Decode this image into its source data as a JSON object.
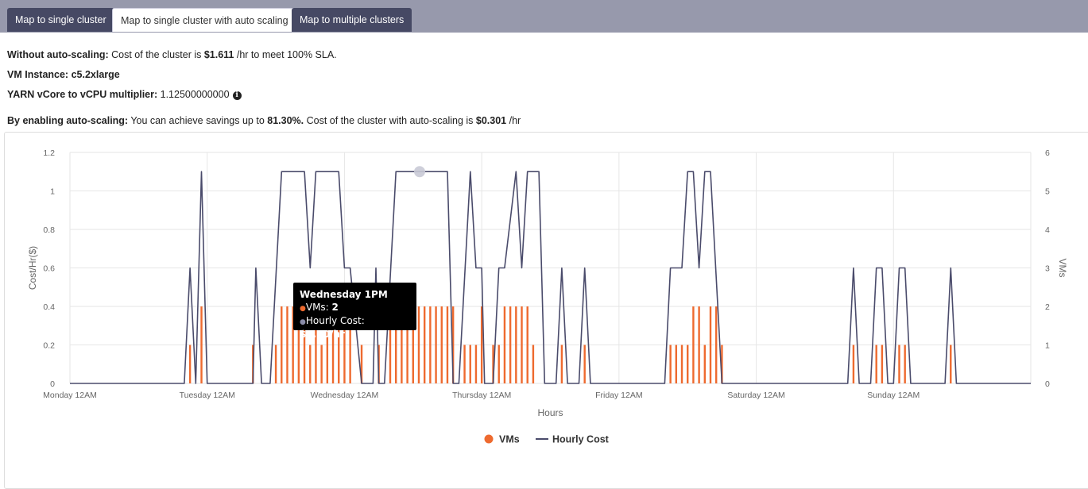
{
  "tabs": [
    {
      "label": "Map to single cluster",
      "active": false
    },
    {
      "label": "Map to single cluster with auto scaling",
      "active": true
    },
    {
      "label": "Map to multiple clusters",
      "active": false
    }
  ],
  "info": {
    "line1_bold": "Without auto-scaling:",
    "line1_text": " Cost of the cluster is ",
    "line1_cost": "$1.611",
    "line1_tail": " /hr to meet 100% SLA.",
    "vm_label": "VM Instance: c5.2xlarge",
    "yarn_bold": "YARN vCore to vCPU multiplier:",
    "yarn_value": " 1.12500000000",
    "savings_bold": "By enabling auto-scaling:",
    "savings_text": " You can achieve savings up to ",
    "savings_pct": "81.30%.",
    "savings_mid": " Cost of the cluster with auto-scaling is ",
    "savings_cost": "$0.301",
    "savings_tail": " /hr"
  },
  "colors": {
    "vms": "#ee6a2f",
    "cost": "#4a4b6b",
    "tab_dark": "#464964",
    "tabbar": "#9799ac"
  },
  "tooltip": {
    "title": "Wednesday 1PM",
    "vms_label": "VMs: ",
    "vms_value": "2",
    "cost_label": "Hourly Cost: ",
    "cost_value": "$1.10/hr"
  },
  "legend": {
    "vms": "VMs",
    "cost": "Hourly Cost"
  },
  "chart_data": {
    "type": "bar+line",
    "xlabel": "Hours",
    "ylabel_left": "Cost/Hr($)",
    "ylabel_right": "VMs",
    "ylim_left": [
      0,
      1.2
    ],
    "ylim_right": [
      0,
      6
    ],
    "yticks_left": [
      "0",
      "0.2",
      "0.4",
      "0.6",
      "0.8",
      "1",
      "1.2"
    ],
    "yticks_right": [
      "0",
      "1",
      "2",
      "3",
      "4",
      "5",
      "6"
    ],
    "xticks": [
      {
        "hour": 0,
        "label": "Monday 12AM"
      },
      {
        "hour": 24,
        "label": "Tuesday 12AM"
      },
      {
        "hour": 48,
        "label": "Wednesday 12AM"
      },
      {
        "hour": 72,
        "label": "Thursday 12AM"
      },
      {
        "hour": 96,
        "label": "Friday 12AM"
      },
      {
        "hour": 120,
        "label": "Saturday 12AM"
      },
      {
        "hour": 144,
        "label": "Sunday 12AM"
      }
    ],
    "hours": 168,
    "vms": [
      0,
      0,
      0,
      0,
      0,
      0,
      0,
      0,
      0,
      0,
      0,
      0,
      0,
      0,
      0,
      0,
      0,
      0,
      0,
      0,
      0,
      1,
      0,
      2,
      0,
      0,
      0,
      0,
      0,
      0,
      0,
      0,
      0,
      1,
      0,
      0,
      0,
      1,
      2,
      2,
      2,
      2,
      1,
      2,
      1,
      2,
      2,
      2,
      2,
      2,
      0,
      1,
      0,
      0,
      1,
      0,
      2,
      2,
      2,
      2,
      2,
      2,
      2,
      2,
      2,
      2,
      2,
      2,
      0,
      1,
      1,
      1,
      2,
      0,
      1,
      1,
      2,
      2,
      2,
      2,
      2,
      1,
      0,
      0,
      0,
      0,
      1,
      0,
      0,
      0,
      1,
      0,
      0,
      0,
      0,
      0,
      0,
      0,
      0,
      0,
      0,
      0,
      0,
      0,
      0,
      1,
      1,
      1,
      1,
      2,
      2,
      1,
      2,
      2,
      1,
      0,
      0,
      0,
      0,
      0,
      0,
      0,
      0,
      0,
      0,
      0,
      0,
      0,
      0,
      0,
      0,
      0,
      0,
      0,
      0,
      0,
      0,
      0,
      0,
      0,
      0,
      0,
      0,
      0,
      0,
      0,
      0,
      0,
      0,
      0,
      0,
      0,
      0,
      0,
      0,
      0,
      0,
      0,
      0,
      0,
      0,
      0,
      0,
      0,
      0,
      0,
      0,
      0
    ],
    "vm_bars": [
      [
        21,
        1
      ],
      [
        23,
        2
      ],
      [
        32,
        1
      ],
      [
        36,
        1
      ],
      [
        37,
        2
      ],
      [
        38,
        2
      ],
      [
        39,
        2
      ],
      [
        40,
        2
      ],
      [
        41,
        2
      ],
      [
        42,
        1
      ],
      [
        43,
        2
      ],
      [
        44,
        1
      ],
      [
        45,
        2
      ],
      [
        46,
        2
      ],
      [
        47,
        2
      ],
      [
        48,
        2
      ],
      [
        49,
        2
      ],
      [
        51,
        1
      ],
      [
        54,
        1
      ],
      [
        56,
        2
      ],
      [
        57,
        2
      ],
      [
        58,
        2
      ],
      [
        59,
        2
      ],
      [
        60,
        2
      ],
      [
        61,
        2
      ],
      [
        62,
        2
      ],
      [
        63,
        2
      ],
      [
        64,
        2
      ],
      [
        65,
        2
      ],
      [
        66,
        2
      ],
      [
        67,
        2
      ],
      [
        69,
        1
      ],
      [
        70,
        1
      ],
      [
        71,
        1
      ],
      [
        72,
        2
      ],
      [
        74,
        1
      ],
      [
        75,
        1
      ],
      [
        76,
        2
      ],
      [
        77,
        2
      ],
      [
        78,
        2
      ],
      [
        79,
        2
      ],
      [
        80,
        2
      ],
      [
        81,
        1
      ],
      [
        86,
        1
      ],
      [
        90,
        1
      ],
      [
        105,
        1
      ],
      [
        106,
        1
      ],
      [
        107,
        1
      ],
      [
        108,
        1
      ],
      [
        109,
        2
      ],
      [
        110,
        2
      ],
      [
        111,
        1
      ],
      [
        112,
        2
      ],
      [
        113,
        2
      ],
      [
        114,
        1
      ],
      [
        137,
        1
      ],
      [
        141,
        1
      ],
      [
        142,
        1
      ],
      [
        145,
        1
      ],
      [
        146,
        1
      ],
      [
        154,
        1
      ]
    ],
    "hourly_cost": [
      [
        0,
        0
      ],
      [
        20,
        0
      ],
      [
        21,
        0.6
      ],
      [
        22,
        0
      ],
      [
        23,
        1.1
      ],
      [
        24,
        0
      ],
      [
        32,
        0
      ],
      [
        32.5,
        0.6
      ],
      [
        33.5,
        0
      ],
      [
        35,
        0
      ],
      [
        37,
        1.1
      ],
      [
        41,
        1.1
      ],
      [
        42,
        0.6
      ],
      [
        43,
        1.1
      ],
      [
        47,
        1.1
      ],
      [
        48,
        0.6
      ],
      [
        49,
        0.6
      ],
      [
        51,
        0
      ],
      [
        53,
        0
      ],
      [
        53.5,
        0.6
      ],
      [
        54,
        0
      ],
      [
        55,
        0
      ],
      [
        57,
        1.1
      ],
      [
        66,
        1.1
      ],
      [
        67,
        0
      ],
      [
        68,
        0
      ],
      [
        70,
        1.1
      ],
      [
        71,
        0.6
      ],
      [
        72,
        0.6
      ],
      [
        72.5,
        0
      ],
      [
        74,
        0
      ],
      [
        75,
        0.6
      ],
      [
        76,
        0.6
      ],
      [
        78,
        1.1
      ],
      [
        79,
        0.6
      ],
      [
        80,
        1.1
      ],
      [
        82,
        1.1
      ],
      [
        83,
        0
      ],
      [
        85,
        0
      ],
      [
        86,
        0.6
      ],
      [
        87,
        0
      ],
      [
        89,
        0
      ],
      [
        90,
        0.6
      ],
      [
        91,
        0
      ],
      [
        104,
        0
      ],
      [
        105,
        0.6
      ],
      [
        107,
        0.6
      ],
      [
        108,
        1.1
      ],
      [
        109,
        1.1
      ],
      [
        110,
        0.6
      ],
      [
        111,
        1.1
      ],
      [
        112,
        1.1
      ],
      [
        114,
        0
      ],
      [
        136,
        0
      ],
      [
        137,
        0.6
      ],
      [
        138,
        0
      ],
      [
        140,
        0
      ],
      [
        141,
        0.6
      ],
      [
        142,
        0.6
      ],
      [
        143,
        0
      ],
      [
        144,
        0
      ],
      [
        145,
        0.6
      ],
      [
        146,
        0.6
      ],
      [
        147,
        0
      ],
      [
        153,
        0
      ],
      [
        154,
        0.6
      ],
      [
        155,
        0
      ],
      [
        168,
        0
      ]
    ],
    "highlight_hour": 61
  }
}
